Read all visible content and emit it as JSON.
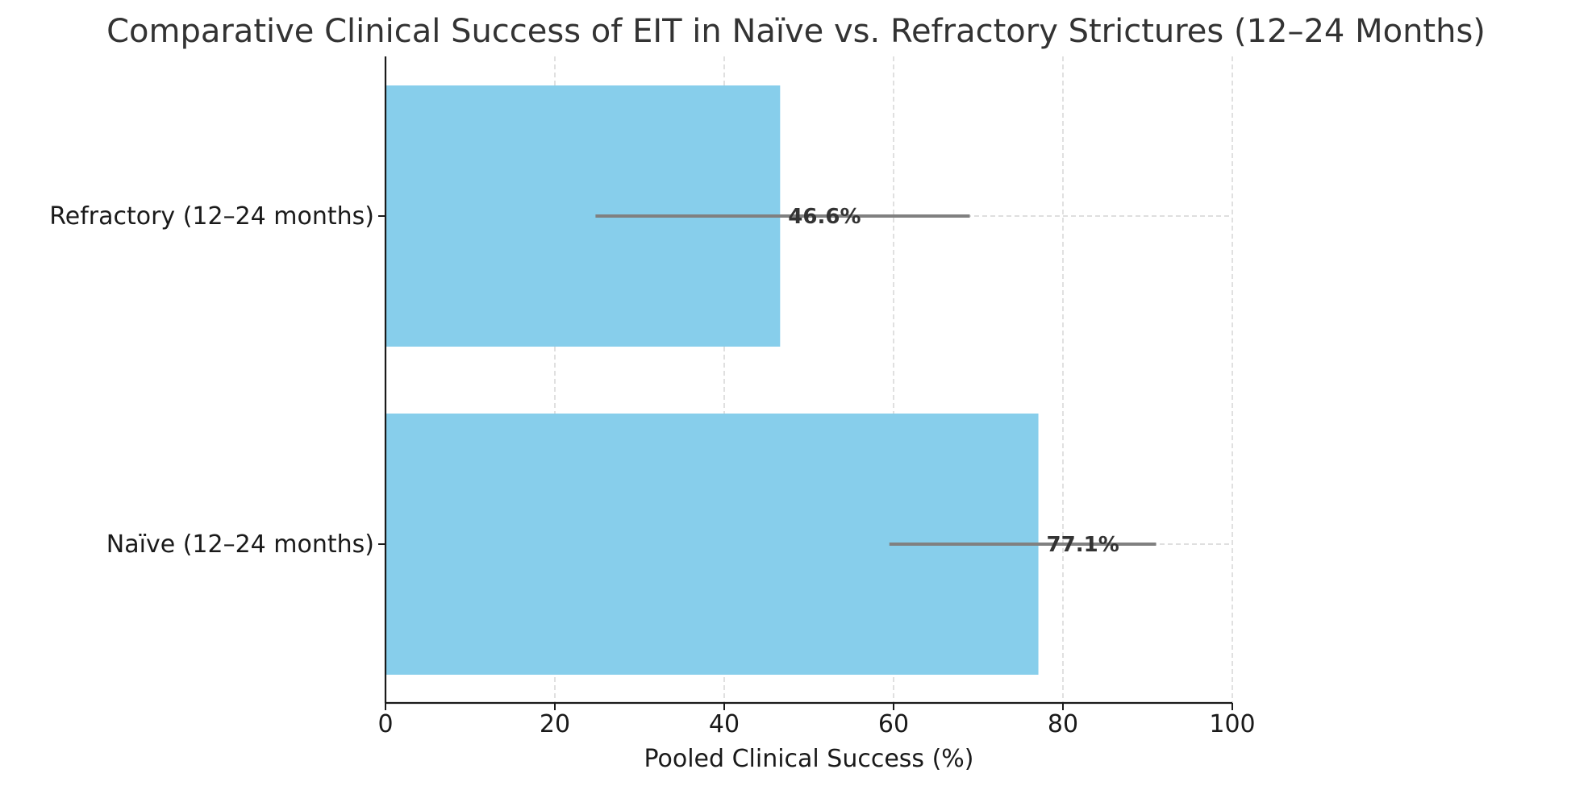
{
  "chart_data": {
    "type": "bar",
    "orientation": "horizontal",
    "title": "Comparative Clinical Success of EIT in Naïve vs. Refractory Strictures (12–24 Months)",
    "xlabel": "Pooled Clinical Success (%)",
    "ylabel": "",
    "xlim": [
      0,
      100
    ],
    "xticks": [
      0,
      20,
      40,
      60,
      80,
      100
    ],
    "grid": true,
    "bar_color": "#87CEEB",
    "error_bar_color": "#808080",
    "categories": [
      "Naïve (12–24 months)",
      "Refractory (12–24 months)"
    ],
    "values": [
      77.1,
      46.6
    ],
    "error_low": [
      59.5,
      24.8
    ],
    "error_high": [
      91.0,
      69.0
    ],
    "data_labels": [
      "77.1%",
      "46.6%"
    ]
  }
}
